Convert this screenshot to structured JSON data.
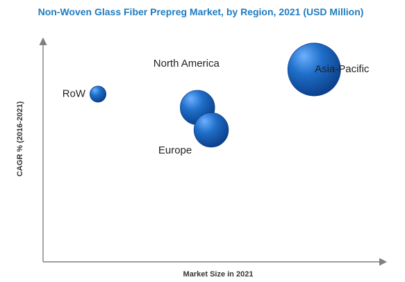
{
  "chart_data": {
    "type": "scatter",
    "title": "Non-Woven Glass Fiber Prepreg Market, by Region, 2021 (USD Million)",
    "xlabel": "Market Size in 2021",
    "ylabel": "CAGR % (2016-2021)",
    "xlim": [
      0,
      100
    ],
    "ylim": [
      0,
      100
    ],
    "grid": false,
    "legend": "none",
    "colors": {
      "title": "#1f7bbf",
      "axis": "#7f7f7f",
      "bubble_light": "#6fb0ff",
      "bubble_mid": "#1f6fc9",
      "bubble_dark": "#0b3f8a",
      "label": "#222222"
    },
    "points": [
      {
        "label": "RoW",
        "x": 16,
        "y": 75,
        "size": 8
      },
      {
        "label": "North America",
        "x": 45,
        "y": 69,
        "size": 19
      },
      {
        "label": "Europe",
        "x": 49,
        "y": 59,
        "size": 19
      },
      {
        "label": "Asia-Pacific",
        "x": 79,
        "y": 86,
        "size": 30
      }
    ]
  }
}
